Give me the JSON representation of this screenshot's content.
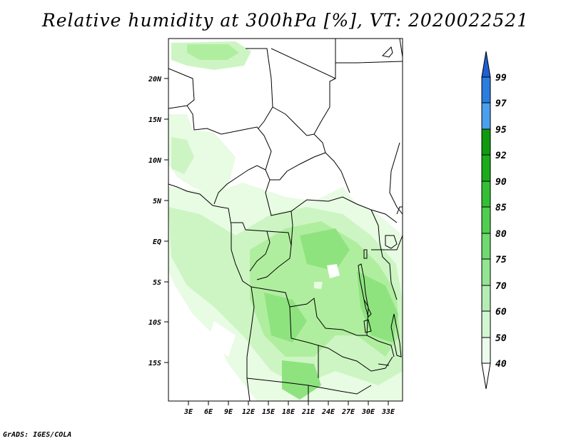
{
  "title": "Relative humidity at 300hPa [%], VT: 2020022521",
  "credit": "GrADS: IGES/COLA",
  "map": {
    "lat_labels": [
      "20N",
      "15N",
      "10N",
      "5N",
      "EQ",
      "5S",
      "10S",
      "15S"
    ],
    "lon_labels": [
      "3E",
      "6E",
      "9E",
      "12E",
      "15E",
      "18E",
      "21E",
      "24E",
      "27E",
      "30E",
      "33E"
    ],
    "ocean_color": "#ffffff",
    "humidity_palette": [
      "#e8fbe3",
      "#cdf5c3",
      "#b0ee9f",
      "#8ee37f",
      "#67d462",
      "#46c048"
    ]
  },
  "colorbar": {
    "levels": [
      "99",
      "97",
      "95",
      "92",
      "90",
      "85",
      "80",
      "75",
      "70",
      "60",
      "50",
      "40"
    ],
    "colors": [
      "#1f5fd3",
      "#2b7de0",
      "#4aa0ee",
      "#109a10",
      "#1bab1b",
      "#33bf33",
      "#4fcf4f",
      "#6fda6f",
      "#93e593",
      "#b4edb4",
      "#d2f5d2",
      "#ecfbec"
    ]
  }
}
